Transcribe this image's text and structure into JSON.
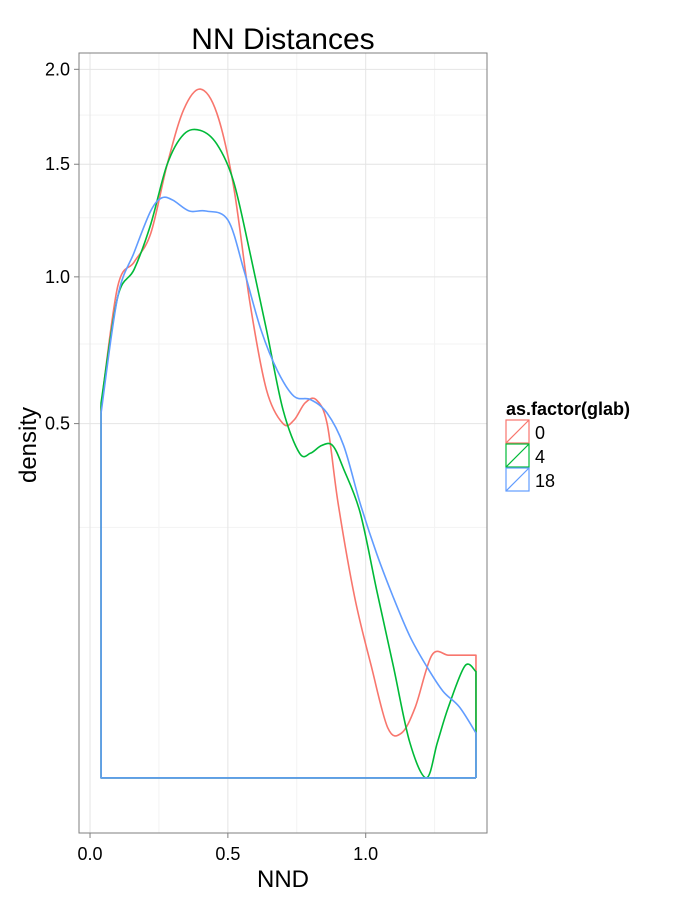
{
  "chart_data": {
    "type": "line",
    "title": "NN Distances",
    "xlabel": "NND",
    "ylabel": "density",
    "x_scale": "linear",
    "y_scale": "sqrt",
    "xlim": [
      -0.04,
      1.44
    ],
    "ylim": [
      -0.05,
      2.05
    ],
    "x_ticks": [
      0.0,
      0.5,
      1.0
    ],
    "x_tick_labels": [
      "0.0",
      "0.5",
      "1.0"
    ],
    "y_ticks": [
      0.5,
      1.0,
      1.5,
      2.0
    ],
    "y_tick_labels": [
      "0.5",
      "1.0",
      "1.5",
      "2.0"
    ],
    "grid": true,
    "legend": {
      "title": "as.factor(glab)",
      "position": "right",
      "entries": [
        "0",
        "4",
        "18"
      ]
    },
    "series": [
      {
        "name": "0",
        "color": "#F8766D",
        "x": [
          0.04,
          0.1,
          0.16,
          0.22,
          0.28,
          0.34,
          0.4,
          0.46,
          0.52,
          0.58,
          0.64,
          0.7,
          0.74,
          0.78,
          0.82,
          0.86,
          0.9,
          0.96,
          1.02,
          1.08,
          1.13,
          1.18,
          1.24,
          1.3,
          1.36,
          1.4
        ],
        "y": [
          0.55,
          0.96,
          1.06,
          1.18,
          1.5,
          1.78,
          1.89,
          1.76,
          1.4,
          0.9,
          0.6,
          0.5,
          0.51,
          0.56,
          0.57,
          0.5,
          0.3,
          0.13,
          0.05,
          0.01,
          0.008,
          0.02,
          0.06,
          0.06,
          0.06,
          0.06
        ]
      },
      {
        "name": "4",
        "color": "#00BA38",
        "x": [
          0.04,
          0.1,
          0.16,
          0.22,
          0.28,
          0.34,
          0.4,
          0.46,
          0.52,
          0.58,
          0.64,
          0.7,
          0.76,
          0.8,
          0.84,
          0.88,
          0.92,
          0.98,
          1.04,
          1.1,
          1.16,
          1.22,
          1.26,
          1.3,
          1.36,
          1.4
        ],
        "y": [
          0.56,
          0.92,
          1.03,
          1.22,
          1.5,
          1.65,
          1.67,
          1.6,
          1.42,
          1.1,
          0.8,
          0.54,
          0.42,
          0.42,
          0.44,
          0.44,
          0.38,
          0.28,
          0.14,
          0.05,
          0.005,
          0.0,
          0.005,
          0.02,
          0.05,
          0.045
        ]
      },
      {
        "name": "18",
        "color": "#619CFF",
        "x": [
          0.04,
          0.1,
          0.16,
          0.22,
          0.26,
          0.3,
          0.36,
          0.42,
          0.5,
          0.56,
          0.62,
          0.68,
          0.74,
          0.8,
          0.86,
          0.92,
          0.98,
          1.04,
          1.1,
          1.16,
          1.22,
          1.28,
          1.34,
          1.4
        ],
        "y": [
          0.53,
          0.92,
          1.1,
          1.28,
          1.34,
          1.33,
          1.28,
          1.28,
          1.24,
          1.02,
          0.8,
          0.66,
          0.58,
          0.57,
          0.53,
          0.44,
          0.3,
          0.2,
          0.13,
          0.08,
          0.05,
          0.03,
          0.02,
          0.008
        ]
      }
    ]
  }
}
